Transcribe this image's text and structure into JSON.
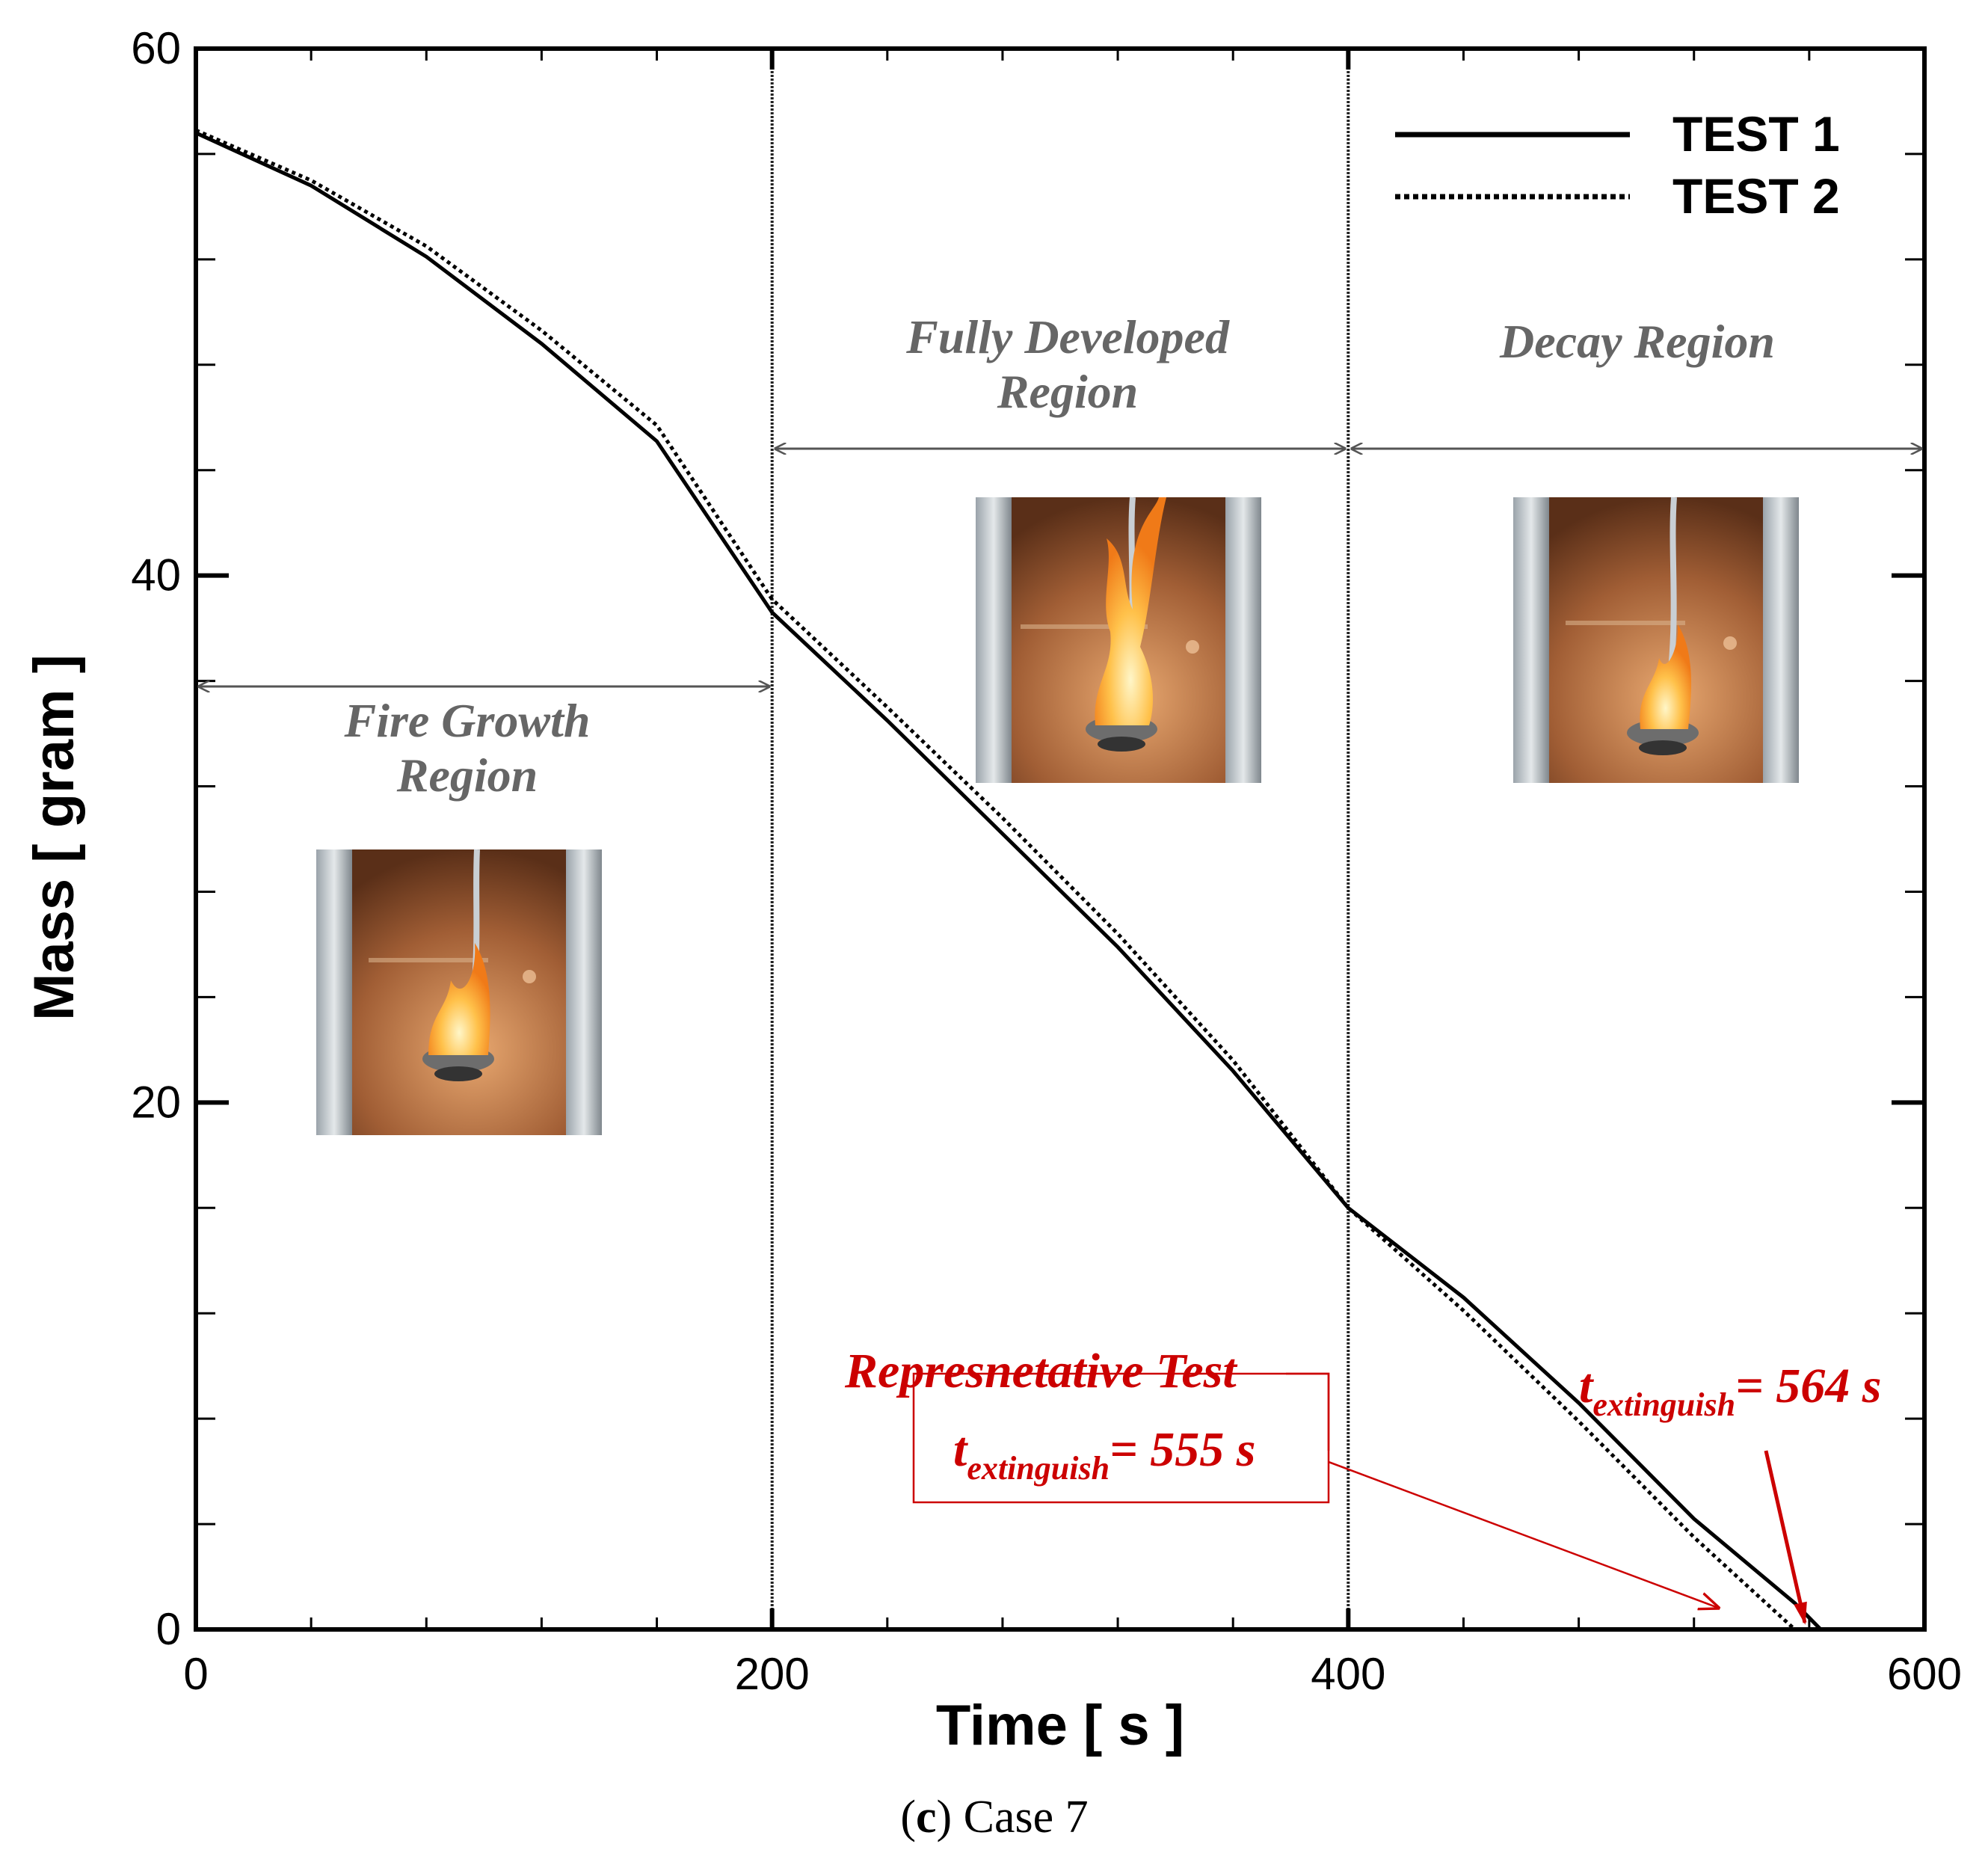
{
  "chart_data": {
    "type": "line",
    "xlabel": "Time [ s ]",
    "ylabel": "Mass [ gram ]",
    "xlim": [
      0,
      600
    ],
    "ylim": [
      0,
      60
    ],
    "x_major_ticks": [
      0,
      200,
      400,
      600
    ],
    "y_major_ticks": [
      0,
      20,
      40,
      60
    ],
    "x_minor_step": 40,
    "y_minor_step": 4,
    "grid": false,
    "legend": {
      "placement": "top-right"
    },
    "series": [
      {
        "name": "TEST 1",
        "style": "solid",
        "x": [
          0,
          40,
          80,
          120,
          160,
          200,
          240,
          280,
          320,
          360,
          400,
          440,
          480,
          520,
          555,
          564
        ],
        "y": [
          56.8,
          54.8,
          52.1,
          48.8,
          45.1,
          38.6,
          34.5,
          30.2,
          25.9,
          21.2,
          16.0,
          12.6,
          8.6,
          4.2,
          1.0,
          0.0
        ]
      },
      {
        "name": "TEST 2",
        "style": "dotted",
        "x": [
          0,
          40,
          80,
          120,
          160,
          200,
          240,
          280,
          320,
          360,
          400,
          440,
          480,
          520,
          555
        ],
        "y": [
          56.9,
          55.0,
          52.5,
          49.3,
          45.7,
          39.1,
          35.0,
          30.8,
          26.4,
          21.6,
          16.0,
          12.1,
          7.9,
          3.5,
          0.0
        ]
      }
    ],
    "regions": [
      {
        "x_start": 0,
        "x_end": 200,
        "label_lines": [
          "Fire Growth",
          "Region"
        ]
      },
      {
        "x_start": 200,
        "x_end": 400,
        "label_lines": [
          "Fully Developed",
          "Region"
        ]
      },
      {
        "x_start": 400,
        "x_end": 600,
        "label_lines": [
          "Decay Region"
        ]
      }
    ],
    "annotations": {
      "representative": {
        "title": "Represnetative Test",
        "t_main": "t",
        "t_sub": "extinguish",
        "value_text": "= 555 s"
      },
      "test1_extinguish": {
        "t_main": "t",
        "t_sub": "extinguish",
        "value_text": "= 564 s"
      }
    },
    "caption": {
      "letter": "c",
      "text": "Case 7"
    }
  },
  "colors": {
    "axis": "#000000",
    "region_label": "#666666",
    "region_arrow": "#555555",
    "annotation": "#cc0000"
  }
}
